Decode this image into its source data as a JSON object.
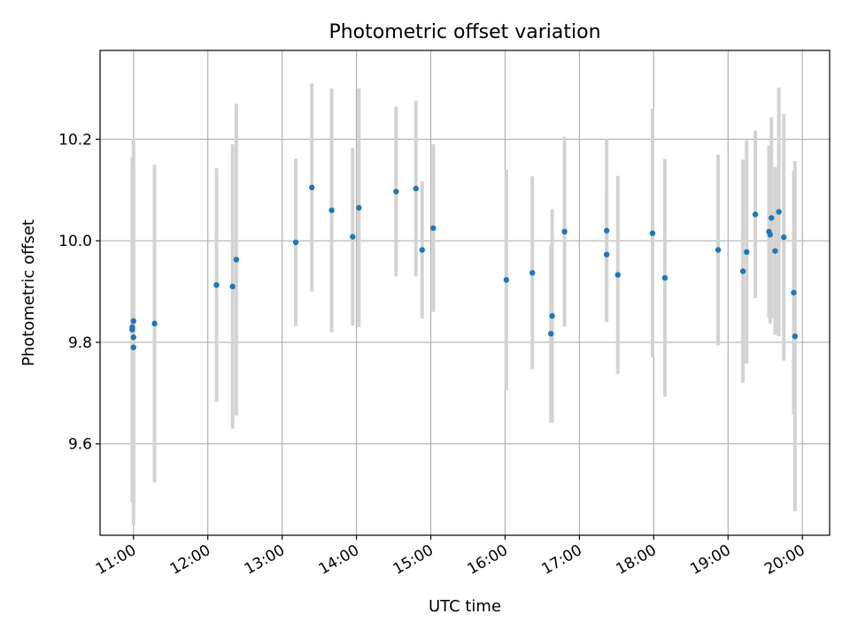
{
  "chart_data": {
    "type": "scatter",
    "title": "Photometric offset variation",
    "xlabel": "UTC time",
    "ylabel": "Photometric offset",
    "x_unit": "UTC time",
    "xlim": [
      "10:33",
      "20:22"
    ],
    "ylim": [
      9.42,
      10.375
    ],
    "x_ticks": [
      "11:00",
      "12:00",
      "13:00",
      "14:00",
      "15:00",
      "16:00",
      "17:00",
      "18:00",
      "19:00",
      "20:00"
    ],
    "y_ticks": [
      9.6,
      9.8,
      10.0,
      10.2
    ],
    "y_tick_labels": [
      "9.6",
      "9.8",
      "10.0",
      "10.2"
    ],
    "grid": true,
    "marker_color": "#1f77b4",
    "errorbar_color": "#d3d3d3",
    "points": [
      {
        "time": "10:59",
        "y": 9.825,
        "err": 0.34
      },
      {
        "time": "10:59",
        "y": 9.83,
        "err": 0.3
      },
      {
        "time": "11:00",
        "y": 9.842,
        "err": 0.36
      },
      {
        "time": "11:00",
        "y": 9.81,
        "err": 0.32
      },
      {
        "time": "11:00",
        "y": 9.79,
        "err": 0.35
      },
      {
        "time": "11:17",
        "y": 9.837,
        "err": 0.313
      },
      {
        "time": "12:07",
        "y": 9.913,
        "err": 0.23
      },
      {
        "time": "12:20",
        "y": 9.91,
        "err": 0.28
      },
      {
        "time": "12:23",
        "y": 9.963,
        "err": 0.307
      },
      {
        "time": "13:11",
        "y": 9.997,
        "err": 0.165
      },
      {
        "time": "13:24",
        "y": 10.105,
        "err": 0.205
      },
      {
        "time": "13:40",
        "y": 10.06,
        "err": 0.24
      },
      {
        "time": "13:57",
        "y": 10.008,
        "err": 0.175
      },
      {
        "time": "14:02",
        "y": 10.065,
        "err": 0.235
      },
      {
        "time": "14:32",
        "y": 10.097,
        "err": 0.167
      },
      {
        "time": "14:48",
        "y": 10.103,
        "err": 0.173
      },
      {
        "time": "14:53",
        "y": 9.982,
        "err": 0.135
      },
      {
        "time": "15:02",
        "y": 10.025,
        "err": 0.165
      },
      {
        "time": "16:01",
        "y": 9.923,
        "err": 0.217
      },
      {
        "time": "16:22",
        "y": 9.937,
        "err": 0.19
      },
      {
        "time": "16:38",
        "y": 9.852,
        "err": 0.21
      },
      {
        "time": "16:37",
        "y": 9.817,
        "err": 0.175
      },
      {
        "time": "16:48",
        "y": 10.018,
        "err": 0.187
      },
      {
        "time": "17:22",
        "y": 10.02,
        "err": 0.18
      },
      {
        "time": "17:22",
        "y": 9.973,
        "err": 0.13
      },
      {
        "time": "17:31",
        "y": 9.933,
        "err": 0.195
      },
      {
        "time": "17:59",
        "y": 10.015,
        "err": 0.245
      },
      {
        "time": "18:09",
        "y": 9.927,
        "err": 0.234
      },
      {
        "time": "18:52",
        "y": 9.982,
        "err": 0.188
      },
      {
        "time": "19:12",
        "y": 9.94,
        "err": 0.22
      },
      {
        "time": "19:15",
        "y": 9.978,
        "err": 0.22
      },
      {
        "time": "19:22",
        "y": 10.052,
        "err": 0.165
      },
      {
        "time": "19:33",
        "y": 10.018,
        "err": 0.17
      },
      {
        "time": "19:34",
        "y": 10.012,
        "err": 0.175
      },
      {
        "time": "19:35",
        "y": 10.045,
        "err": 0.198
      },
      {
        "time": "19:38",
        "y": 9.98,
        "err": 0.165
      },
      {
        "time": "19:41",
        "y": 10.057,
        "err": 0.245
      },
      {
        "time": "19:45",
        "y": 10.007,
        "err": 0.243
      },
      {
        "time": "19:53",
        "y": 9.898,
        "err": 0.24
      },
      {
        "time": "19:54",
        "y": 9.812,
        "err": 0.345
      }
    ]
  }
}
